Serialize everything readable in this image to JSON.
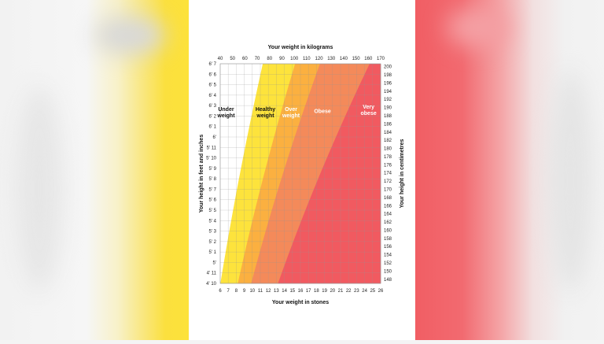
{
  "chart_data": {
    "type": "area",
    "title": "",
    "top_axis": {
      "label": "Your weight in kilograms",
      "min": 40,
      "max": 170,
      "ticks": [
        "40",
        "50",
        "60",
        "70",
        "80",
        "90",
        "100",
        "110",
        "120",
        "130",
        "140",
        "150",
        "160",
        "170"
      ]
    },
    "bottom_axis": {
      "label": "Your weight in stones",
      "min": 6,
      "max": 26,
      "ticks": [
        "6",
        "7",
        "8",
        "9",
        "10",
        "11",
        "12",
        "13",
        "14",
        "15",
        "16",
        "17",
        "18",
        "19",
        "20",
        "21",
        "22",
        "23",
        "24",
        "25",
        "26"
      ]
    },
    "left_axis": {
      "label": "Your height in feet and inches",
      "min_in": 58,
      "max_in": 79,
      "ticks": [
        "4' 10",
        "4' 11",
        "5'",
        "5' 1",
        "5' 2",
        "5' 3",
        "5' 4",
        "5' 5",
        "5' 6",
        "5' 7",
        "5' 8",
        "5' 9",
        "5' 10",
        "5' 11",
        "6'",
        "6' 1",
        "6' 2",
        "6' 3",
        "6' 4",
        "6' 5",
        "6' 6",
        "6' 7"
      ]
    },
    "right_axis": {
      "label": "Your height in centimetres",
      "min": 147,
      "max": 200.7,
      "ticks": [
        "148",
        "150",
        "152",
        "154",
        "156",
        "158",
        "160",
        "162",
        "164",
        "166",
        "168",
        "170",
        "172",
        "174",
        "176",
        "178",
        "180",
        "182",
        "184",
        "186",
        "188",
        "190",
        "192",
        "194",
        "196",
        "198",
        "200"
      ]
    },
    "grid": true,
    "zones": [
      {
        "name": "Under weight",
        "label_lines": [
          "Under",
          "weight"
        ],
        "bmi_from": 0,
        "bmi_to": 18.5,
        "color": "#ffffff",
        "text_color": "#111111",
        "label_height_in": 74.5,
        "label_bmi": 12.5
      },
      {
        "name": "Healthy weight",
        "label_lines": [
          "Healthy",
          "weight"
        ],
        "bmi_from": 18.5,
        "bmi_to": 25,
        "color": "#fde33c",
        "text_color": "#111111",
        "label_height_in": 74.5,
        "label_bmi": 21.4
      },
      {
        "name": "Over weight",
        "label_lines": [
          "Over",
          "weight"
        ],
        "bmi_from": 25,
        "bmi_to": 30,
        "color": "#fbb040",
        "text_color": "#ffffff",
        "label_height_in": 74.5,
        "label_bmi": 27.2
      },
      {
        "name": "Obese",
        "label_lines": [
          "Obese"
        ],
        "bmi_from": 30,
        "bmi_to": 40,
        "color": "#f48a5a",
        "text_color": "#ffffff",
        "label_height_in": 74.3,
        "label_bmi": 34.5
      },
      {
        "name": "Very obese",
        "label_lines": [
          "Very",
          "obese"
        ],
        "bmi_from": 40,
        "bmi_to": 999,
        "color": "#f15a60",
        "text_color": "#ffffff",
        "label_height_in": 74.7,
        "label_bmi": 44.5
      }
    ]
  }
}
